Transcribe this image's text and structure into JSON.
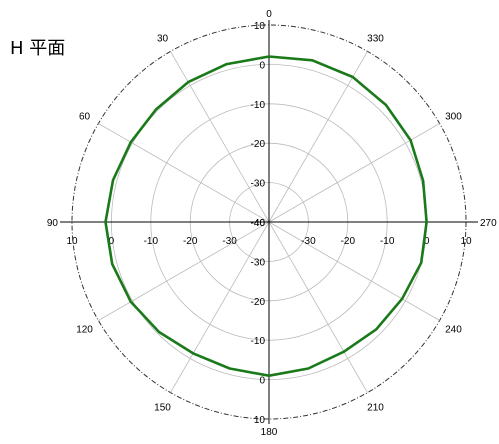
{
  "chart_data": {
    "type": "polar",
    "title": "H 平面",
    "radial_range": [
      -40,
      10
    ],
    "radial_ticks": [
      -40,
      -30,
      -20,
      -10,
      0,
      10
    ],
    "angle_labels": [
      "0",
      "30",
      "60",
      "90",
      "120",
      "150",
      "180",
      "210",
      "240",
      "270",
      "300",
      "330"
    ],
    "grid": true,
    "series": [
      {
        "color": "#1a7a1a",
        "angle_deg": [
          0,
          15,
          30,
          45,
          60,
          75,
          90,
          105,
          120,
          135,
          150,
          165,
          180,
          195,
          210,
          225,
          240,
          255,
          270,
          285,
          300,
          315,
          330,
          345
        ],
        "values": [
          2,
          1.5,
          1,
          0.5,
          0.5,
          1,
          1.5,
          1.2,
          0.5,
          -0.5,
          -1.5,
          -1.5,
          -1,
          -1.5,
          -2,
          -1.5,
          -1,
          0,
          0,
          0.5,
          1.5,
          2,
          2.5,
          2.5
        ]
      }
    ]
  }
}
